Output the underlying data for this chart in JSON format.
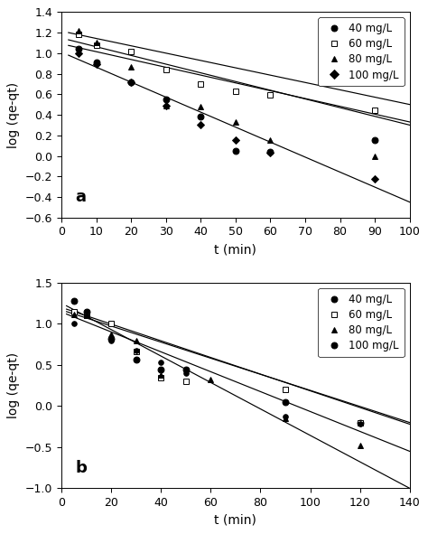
{
  "panel_a": {
    "title": "a",
    "xlabel": "t (min)",
    "ylabel": "log (qe-qt)",
    "xlim": [
      0,
      100
    ],
    "ylim": [
      -0.6,
      1.4
    ],
    "xticks": [
      0,
      10,
      20,
      30,
      40,
      50,
      60,
      70,
      80,
      90,
      100
    ],
    "yticks": [
      -0.6,
      -0.4,
      -0.2,
      0.0,
      0.2,
      0.4,
      0.6,
      0.8,
      1.0,
      1.2,
      1.4
    ],
    "series": [
      {
        "label": "40 mg/L",
        "marker": "o",
        "fillstyle": "full",
        "x": [
          5,
          10,
          20,
          30,
          40,
          50,
          60,
          90
        ],
        "y": [
          1.04,
          0.91,
          0.72,
          0.55,
          0.38,
          0.05,
          0.04,
          0.15
        ],
        "line_x": [
          2,
          100
        ],
        "line_y": [
          1.075,
          0.33
        ]
      },
      {
        "label": "60 mg/L",
        "marker": "s",
        "fillstyle": "none",
        "x": [
          5,
          10,
          20,
          30,
          40,
          50,
          60,
          90
        ],
        "y": [
          1.18,
          1.08,
          1.02,
          0.84,
          0.7,
          0.63,
          0.59,
          0.44
        ],
        "line_x": [
          2,
          100
        ],
        "line_y": [
          1.2,
          0.5
        ]
      },
      {
        "label": "80 mg/L",
        "marker": "^",
        "fillstyle": "full",
        "x": [
          5,
          10,
          20,
          30,
          40,
          50,
          60,
          90
        ],
        "y": [
          1.22,
          1.1,
          0.87,
          0.49,
          0.48,
          0.33,
          0.15,
          0.0
        ],
        "line_x": [
          2,
          100
        ],
        "line_y": [
          1.13,
          0.3
        ]
      },
      {
        "label": "100 mg/L",
        "marker": "D",
        "fillstyle": "full",
        "x": [
          5,
          10,
          20,
          30,
          40,
          50,
          60,
          90
        ],
        "y": [
          1.0,
          0.89,
          0.72,
          0.49,
          0.3,
          0.15,
          0.03,
          -0.22
        ],
        "line_x": [
          2,
          100
        ],
        "line_y": [
          0.98,
          -0.45
        ]
      }
    ]
  },
  "panel_b": {
    "title": "b",
    "xlabel": "t (min)",
    "ylabel": "log (qe-qt)",
    "xlim": [
      0,
      140
    ],
    "ylim": [
      -1.0,
      1.5
    ],
    "xticks": [
      0,
      20,
      40,
      60,
      80,
      100,
      120,
      140
    ],
    "yticks": [
      -1.0,
      -0.5,
      0.0,
      0.5,
      1.0,
      1.5
    ],
    "series": [
      {
        "label": "40 mg/L",
        "marker": "o",
        "fillstyle": "full",
        "x": [
          5,
          10,
          20,
          30,
          40,
          50,
          90,
          120
        ],
        "y": [
          1.28,
          1.15,
          0.82,
          0.57,
          0.45,
          0.44,
          0.05,
          -0.2
        ],
        "line_x": [
          2,
          140
        ],
        "line_y": [
          1.18,
          -0.22
        ]
      },
      {
        "label": "60 mg/L",
        "marker": "s",
        "fillstyle": "none",
        "x": [
          5,
          10,
          20,
          30,
          40,
          50,
          90,
          120
        ],
        "y": [
          1.15,
          1.1,
          1.0,
          0.66,
          0.35,
          0.3,
          0.2,
          -0.2
        ],
        "line_x": [
          2,
          140
        ],
        "line_y": [
          1.15,
          -0.2
        ]
      },
      {
        "label": "80 mg/L",
        "marker": "^",
        "fillstyle": "full",
        "x": [
          5,
          10,
          20,
          30,
          40,
          60,
          90,
          120
        ],
        "y": [
          1.12,
          1.1,
          0.87,
          0.8,
          0.38,
          0.32,
          -0.15,
          -0.48
        ],
        "line_x": [
          2,
          140
        ],
        "line_y": [
          1.12,
          -0.55
        ]
      },
      {
        "label": "100 mg/L",
        "marker": "o",
        "fillstyle": "full",
        "x": [
          5,
          10,
          20,
          30,
          40,
          50,
          90,
          120
        ],
        "y": [
          1.0,
          1.1,
          0.8,
          0.68,
          0.53,
          0.4,
          -0.13,
          -0.22
        ],
        "line_x": [
          2,
          140
        ],
        "line_y": [
          1.22,
          -1.0
        ]
      }
    ]
  }
}
